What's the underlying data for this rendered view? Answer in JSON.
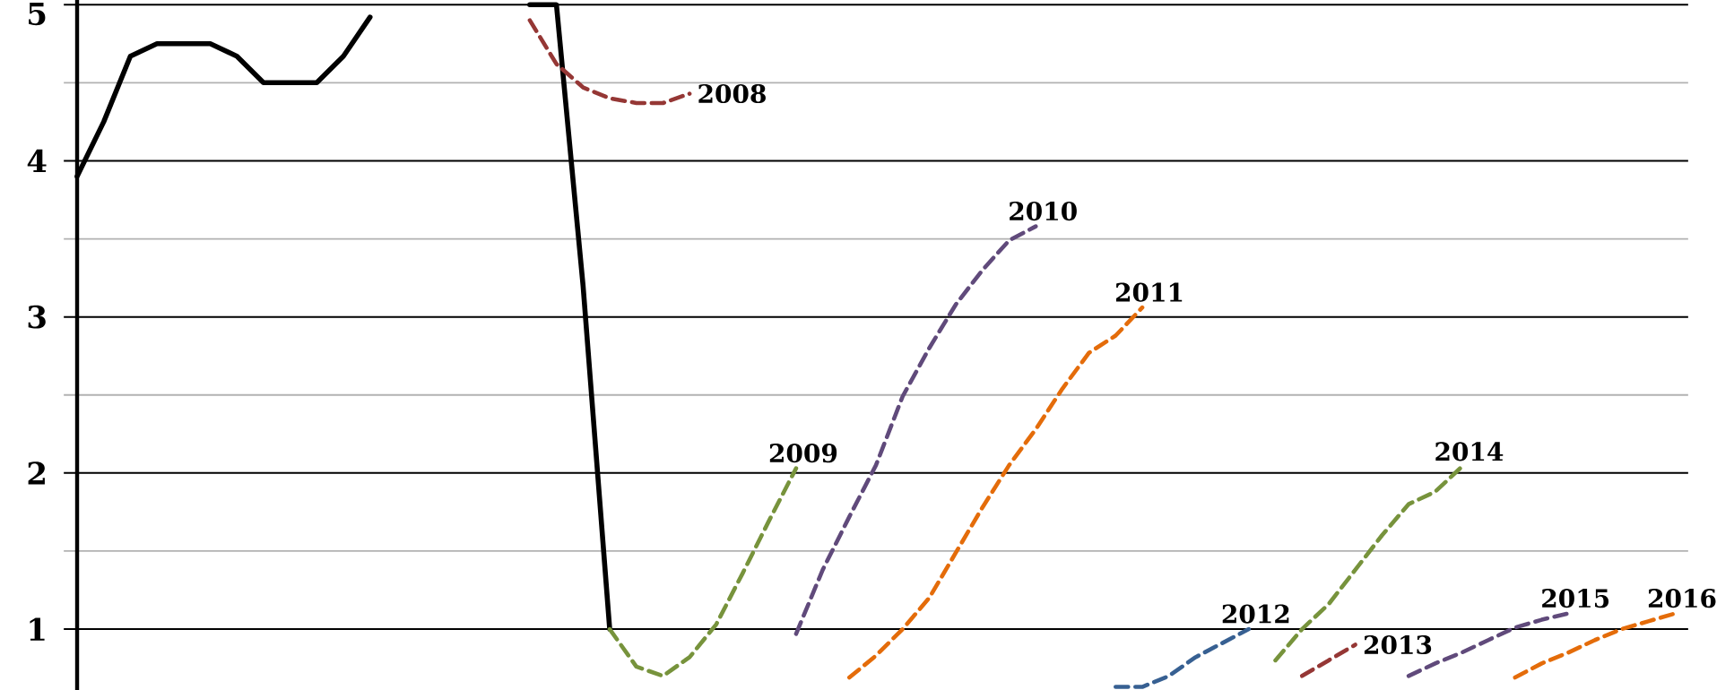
{
  "chart_data": {
    "type": "line",
    "categories": [
      null,
      null,
      null,
      null,
      null,
      null,
      null,
      null,
      null,
      null,
      null,
      null,
      null,
      null,
      null,
      null,
      null,
      null,
      null,
      null,
      null,
      null,
      null,
      null,
      null,
      null,
      null,
      null,
      null,
      null,
      null,
      null,
      null,
      null,
      null,
      null,
      null,
      null,
      null,
      null,
      null,
      null,
      null,
      null,
      null,
      null,
      null,
      null,
      null,
      null,
      null,
      null,
      null,
      null,
      null,
      null,
      null,
      null,
      null,
      null,
      null
    ],
    "series": [
      {
        "color": "#000000",
        "line_style": "solid",
        "values": [
          3.9,
          4.25,
          4.67,
          4.75,
          4.75,
          4.75,
          4.67,
          4.5,
          4.5,
          4.5,
          4.67,
          4.92,
          null,
          null,
          null,
          null,
          null,
          5.0,
          5.0,
          3.2,
          1.0,
          null,
          null,
          null,
          null,
          null,
          null,
          null,
          null,
          null,
          null,
          null,
          null,
          null,
          null,
          null,
          null,
          null,
          null,
          null,
          null,
          null,
          null,
          null,
          null,
          null,
          null,
          null,
          null,
          null,
          null,
          null,
          null,
          null,
          null,
          null,
          null,
          null,
          null,
          null,
          null
        ]
      },
      {
        "name": "2008",
        "color": "#953735",
        "line_style": "dashed",
        "values": [
          null,
          null,
          null,
          null,
          null,
          null,
          null,
          null,
          null,
          null,
          null,
          null,
          null,
          null,
          null,
          null,
          null,
          4.9,
          4.62,
          4.47,
          4.4,
          4.37,
          4.37,
          4.43,
          null,
          null,
          null,
          null,
          null,
          null,
          null,
          null,
          null,
          null,
          null,
          null,
          null,
          null,
          null,
          null,
          null,
          null,
          null,
          null,
          null,
          null,
          null,
          null,
          null,
          null,
          null,
          null,
          null,
          null,
          null,
          null,
          null,
          null,
          null,
          null,
          null
        ]
      },
      {
        "name": "2009",
        "color": "#77933c",
        "line_style": "dashed",
        "values": [
          null,
          null,
          null,
          null,
          null,
          null,
          null,
          null,
          null,
          null,
          null,
          null,
          null,
          null,
          null,
          null,
          null,
          null,
          null,
          null,
          1.0,
          0.76,
          0.7,
          0.82,
          1.03,
          1.36,
          1.7,
          2.03,
          null,
          null,
          null,
          null,
          null,
          null,
          null,
          null,
          null,
          null,
          null,
          null,
          null,
          null,
          null,
          null,
          null,
          null,
          null,
          null,
          null,
          null,
          null,
          null,
          null,
          null,
          null,
          null,
          null,
          null,
          null,
          null,
          null
        ]
      },
      {
        "name": "2010",
        "color": "#604a7b",
        "line_style": "dashed",
        "values": [
          null,
          null,
          null,
          null,
          null,
          null,
          null,
          null,
          null,
          null,
          null,
          null,
          null,
          null,
          null,
          null,
          null,
          null,
          null,
          null,
          null,
          null,
          null,
          null,
          null,
          null,
          null,
          0.97,
          1.38,
          1.72,
          2.05,
          2.49,
          2.8,
          3.08,
          3.3,
          3.49,
          3.58,
          null,
          null,
          null,
          null,
          null,
          null,
          null,
          null,
          null,
          null,
          null,
          null,
          null,
          null,
          null,
          null,
          null,
          null,
          null,
          null,
          null,
          null,
          null,
          null
        ]
      },
      {
        "name": "2011",
        "color": "#e46c0a",
        "line_style": "dashed",
        "values": [
          null,
          null,
          null,
          null,
          null,
          null,
          null,
          null,
          null,
          null,
          null,
          null,
          null,
          null,
          null,
          null,
          null,
          null,
          null,
          null,
          null,
          null,
          null,
          null,
          null,
          null,
          null,
          null,
          null,
          0.69,
          0.83,
          1.0,
          1.2,
          1.49,
          1.78,
          2.05,
          2.28,
          2.54,
          2.77,
          2.88,
          3.06,
          null,
          null,
          null,
          null,
          null,
          null,
          null,
          null,
          null,
          null,
          null,
          null,
          null,
          null,
          null,
          null,
          null,
          null,
          null,
          null
        ]
      },
      {
        "name": "2012",
        "color": "#376092",
        "line_style": "dashed",
        "values": [
          null,
          null,
          null,
          null,
          null,
          null,
          null,
          null,
          null,
          null,
          null,
          null,
          null,
          null,
          null,
          null,
          null,
          null,
          null,
          null,
          null,
          null,
          null,
          null,
          null,
          null,
          null,
          null,
          null,
          null,
          null,
          null,
          null,
          null,
          null,
          null,
          null,
          null,
          null,
          0.63,
          0.63,
          0.7,
          0.82,
          0.91,
          1.0,
          null,
          null,
          null,
          null,
          null,
          null,
          null,
          null,
          null,
          null,
          null,
          null,
          null,
          null,
          null,
          null
        ]
      },
      {
        "name": "2013",
        "color": "#953735",
        "line_style": "dashed",
        "values": [
          null,
          null,
          null,
          null,
          null,
          null,
          null,
          null,
          null,
          null,
          null,
          null,
          null,
          null,
          null,
          null,
          null,
          null,
          null,
          null,
          null,
          null,
          null,
          null,
          null,
          null,
          null,
          null,
          null,
          null,
          null,
          null,
          null,
          null,
          null,
          null,
          null,
          null,
          null,
          null,
          null,
          null,
          null,
          null,
          null,
          null,
          0.7,
          0.8,
          0.9,
          null,
          null,
          null,
          null,
          null,
          null,
          null,
          null,
          null,
          null,
          null,
          null
        ]
      },
      {
        "name": "2014",
        "color": "#77933c",
        "line_style": "dashed",
        "values": [
          null,
          null,
          null,
          null,
          null,
          null,
          null,
          null,
          null,
          null,
          null,
          null,
          null,
          null,
          null,
          null,
          null,
          null,
          null,
          null,
          null,
          null,
          null,
          null,
          null,
          null,
          null,
          null,
          null,
          null,
          null,
          null,
          null,
          null,
          null,
          null,
          null,
          null,
          null,
          null,
          null,
          null,
          null,
          null,
          null,
          0.8,
          1.0,
          1.16,
          1.38,
          1.6,
          1.8,
          1.88,
          2.04,
          null,
          null,
          null,
          null,
          null,
          null,
          null,
          null
        ]
      },
      {
        "name": "2015",
        "color": "#604a7b",
        "line_style": "dashed",
        "values": [
          null,
          null,
          null,
          null,
          null,
          null,
          null,
          null,
          null,
          null,
          null,
          null,
          null,
          null,
          null,
          null,
          null,
          null,
          null,
          null,
          null,
          null,
          null,
          null,
          null,
          null,
          null,
          null,
          null,
          null,
          null,
          null,
          null,
          null,
          null,
          null,
          null,
          null,
          null,
          null,
          null,
          null,
          null,
          null,
          null,
          null,
          null,
          null,
          null,
          null,
          0.7,
          0.78,
          0.85,
          0.93,
          1.01,
          1.06,
          1.1,
          null,
          null,
          null,
          null
        ]
      },
      {
        "name": "2016",
        "color": "#e46c0a",
        "line_style": "dashed",
        "values": [
          null,
          null,
          null,
          null,
          null,
          null,
          null,
          null,
          null,
          null,
          null,
          null,
          null,
          null,
          null,
          null,
          null,
          null,
          null,
          null,
          null,
          null,
          null,
          null,
          null,
          null,
          null,
          null,
          null,
          null,
          null,
          null,
          null,
          null,
          null,
          null,
          null,
          null,
          null,
          null,
          null,
          null,
          null,
          null,
          null,
          null,
          null,
          null,
          null,
          null,
          null,
          null,
          null,
          null,
          0.69,
          0.78,
          0.85,
          0.93,
          1.0,
          1.05,
          1.1
        ]
      }
    ],
    "ylim": [
      0.61,
      5.03
    ],
    "yticks": [
      1,
      2,
      3,
      4,
      5
    ],
    "grid": "y",
    "tick_labels": "y"
  }
}
